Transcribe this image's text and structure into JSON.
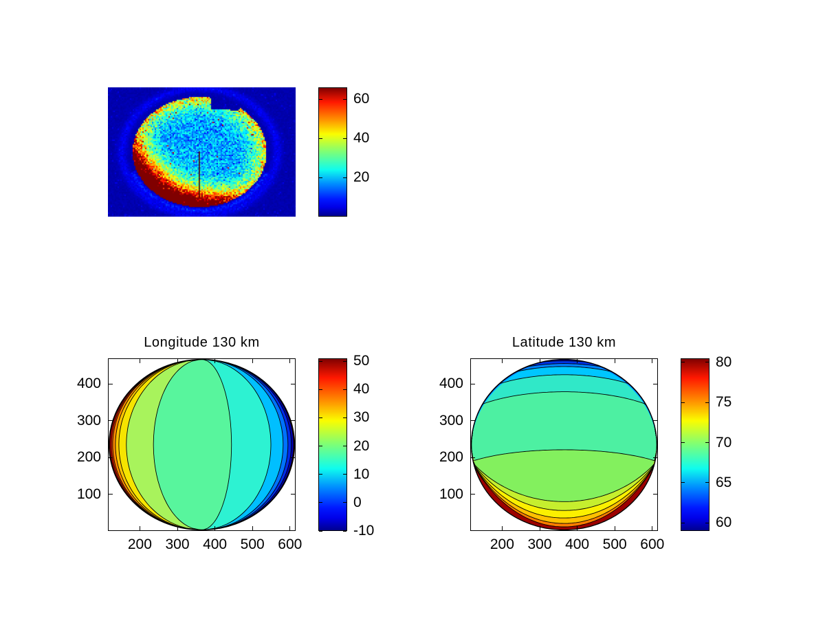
{
  "figure": {
    "background": "#ffffff"
  },
  "chart_data": [
    {
      "type": "heatmap",
      "name": "raw-polar-image",
      "title": "",
      "colorbar": {
        "ticks": [
          60,
          40,
          20
        ],
        "range": [
          0,
          66
        ]
      },
      "scene": {
        "description": "noisy jet-colormap CCD image of planetary disk",
        "background_level": 2.2,
        "disk": {
          "cx_frac": 0.4853,
          "cy_frac": 0.4947,
          "rx_frac": 0.3571,
          "ry_frac": 0.4255
        },
        "notch": {
          "x0_frac": 0.549,
          "x1_frac": 0.648,
          "y1_frac": 0.165,
          "bite_cx_frac": 0.67,
          "bite_cy_frac": 0.133,
          "bite_r_frac": 0.033
        },
        "crescent": {
          "direction": "lower-left",
          "dir_x": -0.55,
          "dir_y": 0.84,
          "strength": 85
        },
        "halo_ring": {
          "radius_frac": 1.16,
          "strength": 3.6
        },
        "streak": {
          "x_frac": 0.4835,
          "y0_frac": 0.4947,
          "y1_frac": 0.851
        }
      }
    },
    {
      "type": "contour",
      "name": "longitude-map",
      "title": "Longitude 130 km",
      "orientation": "meridional",
      "x_ticks": [
        200,
        300,
        400,
        500,
        600
      ],
      "y_ticks": [
        100,
        200,
        300,
        400
      ],
      "x_range": [
        115,
        615
      ],
      "y_range": [
        0,
        470
      ],
      "base_color": "#58f59d",
      "left_caps": [
        {
          "frac": 0.2407,
          "color": "#a8f35c"
        },
        {
          "frac": 0.0952,
          "color": "#f6e400"
        },
        {
          "frac": 0.0549,
          "color": "#ffc400"
        },
        {
          "frac": 0.0366,
          "color": "#ff8a00"
        },
        {
          "frac": 0.022,
          "color": "#ff4a00"
        },
        {
          "frac": 0.0147,
          "color": "#e60000"
        },
        {
          "frac": 0.0073,
          "color": "#8c0000"
        }
      ],
      "right_caps": [
        {
          "frac": 0.6593,
          "color": "#2df2d2"
        },
        {
          "frac": 0.8707,
          "color": "#00bfff"
        },
        {
          "frac": 0.9366,
          "color": "#0072ff"
        },
        {
          "frac": 0.9623,
          "color": "#002ae8"
        },
        {
          "frac": 0.9805,
          "color": "#0000ae"
        },
        {
          "frac": 0.9927,
          "color": "#8c0000"
        }
      ],
      "colorbar": {
        "ticks": [
          50,
          40,
          30,
          20,
          10,
          0,
          -10
        ],
        "range": [
          -10,
          51
        ]
      }
    },
    {
      "type": "contour",
      "name": "latitude-map",
      "title": "Latitude 130 km",
      "orientation": "zonal",
      "x_ticks": [
        200,
        300,
        400,
        500,
        600
      ],
      "y_ticks": [
        100,
        200,
        300,
        400
      ],
      "x_range": [
        115,
        615
      ],
      "y_range": [
        0,
        470
      ],
      "base_color": "#4df0a2",
      "top_caps": [
        {
          "frac": 0.1912,
          "color": "#30e8c8"
        },
        {
          "frac": 0.0916,
          "color": "#00c6ff"
        },
        {
          "frac": 0.0438,
          "color": "#0082ff"
        },
        {
          "frac": 0.0267,
          "color": "#0034e8"
        },
        {
          "frac": 0.0108,
          "color": "#0000b2"
        }
      ],
      "bottom_caps": [
        {
          "frac": 0.5299,
          "color": "#83f05e"
        },
        {
          "frac": 0.8327,
          "color": "#c6ee2e"
        },
        {
          "frac": 0.8845,
          "color": "#fbf000"
        },
        {
          "frac": 0.9283,
          "color": "#ffc000"
        },
        {
          "frac": 0.9602,
          "color": "#ff7c00"
        },
        {
          "frac": 0.98,
          "color": "#9c0000"
        }
      ],
      "colorbar": {
        "ticks": [
          80,
          75,
          70,
          65,
          60
        ],
        "range": [
          59,
          80.5
        ]
      }
    }
  ]
}
